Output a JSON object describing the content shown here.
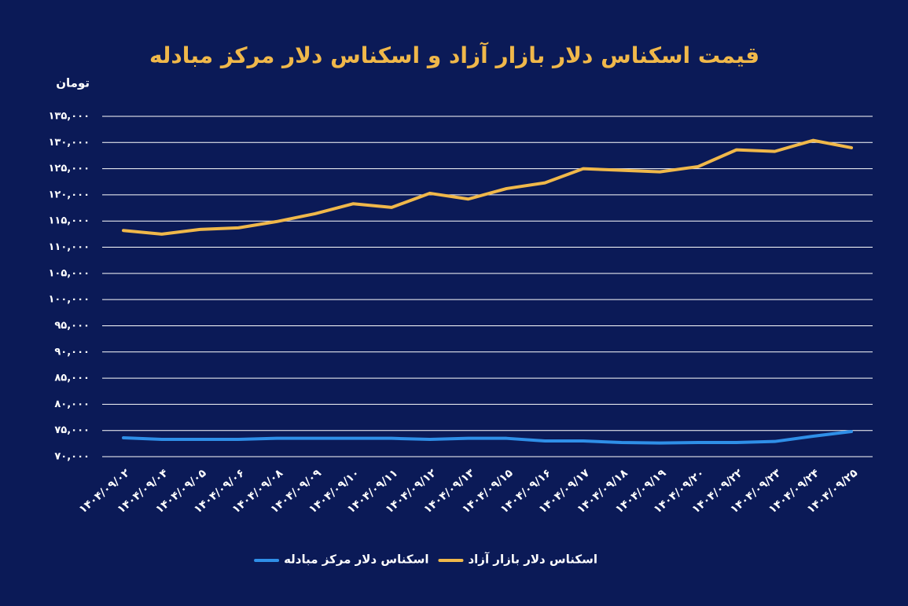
{
  "chart_data": {
    "type": "line",
    "title": "قیمت اسکناس دلار بازار آزاد و اسکناس دلار مرکز مبادله",
    "y_label": "تومان",
    "categories": [
      "۱۴۰۴/۰۹/۰۲",
      "۱۴۰۴/۰۹/۰۴",
      "۱۴۰۴/۰۹/۰۵",
      "۱۴۰۴/۰۹/۰۶",
      "۱۴۰۴/۰۹/۰۸",
      "۱۴۰۴/۰۹/۰۹",
      "۱۴۰۴/۰۹/۱۰",
      "۱۴۰۴/۰۹/۱۱",
      "۱۴۰۴/۰۹/۱۲",
      "۱۴۰۴/۰۹/۱۳",
      "۱۴۰۴/۰۹/۱۵",
      "۱۴۰۴/۰۹/۱۶",
      "۱۴۰۴/۰۹/۱۷",
      "۱۴۰۴/۰۹/۱۸",
      "۱۴۰۴/۰۹/۱۹",
      "۱۴۰۴/۰۹/۲۰",
      "۱۴۰۴/۰۹/۲۲",
      "۱۴۰۴/۰۹/۲۳",
      "۱۴۰۴/۰۹/۲۴",
      "۱۴۰۴/۰۹/۲۵"
    ],
    "series": [
      {
        "name": "اسکناس دلار بازار آزاد",
        "color": "#f0b84a",
        "values": [
          113200,
          112500,
          113400,
          113700,
          114900,
          116400,
          118300,
          117600,
          120300,
          119200,
          121200,
          122300,
          125000,
          124700,
          124400,
          125400,
          128600,
          128300,
          130400,
          129000
        ]
      },
      {
        "name": "اسکناس دلار مرکز مبادله",
        "color": "#2f8fe8",
        "values": [
          73600,
          73300,
          73300,
          73300,
          73500,
          73500,
          73500,
          73500,
          73300,
          73500,
          73500,
          73000,
          73000,
          72700,
          72600,
          72700,
          72700,
          72900,
          73900,
          74800
        ]
      }
    ],
    "ylim": [
      70000,
      135000
    ],
    "yticks": [
      {
        "value": 70000,
        "label": "۷۰,۰۰۰"
      },
      {
        "value": 75000,
        "label": "۷۵,۰۰۰"
      },
      {
        "value": 80000,
        "label": "۸۰,۰۰۰"
      },
      {
        "value": 85000,
        "label": "۸۵,۰۰۰"
      },
      {
        "value": 90000,
        "label": "۹۰,۰۰۰"
      },
      {
        "value": 95000,
        "label": "۹۵,۰۰۰"
      },
      {
        "value": 100000,
        "label": "۱۰۰,۰۰۰"
      },
      {
        "value": 105000,
        "label": "۱۰۵,۰۰۰"
      },
      {
        "value": 110000,
        "label": "۱۱۰,۰۰۰"
      },
      {
        "value": 115000,
        "label": "۱۱۵,۰۰۰"
      },
      {
        "value": 120000,
        "label": "۱۲۰,۰۰۰"
      },
      {
        "value": 125000,
        "label": "۱۲۵,۰۰۰"
      },
      {
        "value": 130000,
        "label": "۱۳۰,۰۰۰"
      },
      {
        "value": 135000,
        "label": "۱۳۵,۰۰۰"
      }
    ],
    "grid": true
  }
}
